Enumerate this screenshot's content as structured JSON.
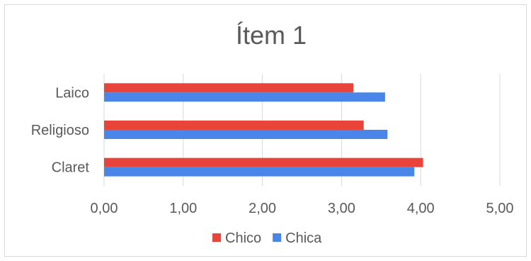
{
  "chart_data": {
    "type": "bar",
    "orientation": "horizontal",
    "title": "Ítem 1",
    "categories": [
      "Laico",
      "Religioso",
      "Claret"
    ],
    "series": [
      {
        "name": "Chico",
        "color": "#e8443a",
        "values": [
          3.15,
          3.28,
          4.03
        ]
      },
      {
        "name": "Chica",
        "color": "#4a86e8",
        "values": [
          3.55,
          3.58,
          3.92
        ]
      }
    ],
    "xlim": [
      0,
      5
    ],
    "xticks": [
      "0,00",
      "1,00",
      "2,00",
      "3,00",
      "4,00",
      "5,00"
    ],
    "grid": "vertical",
    "legend_position": "bottom"
  }
}
